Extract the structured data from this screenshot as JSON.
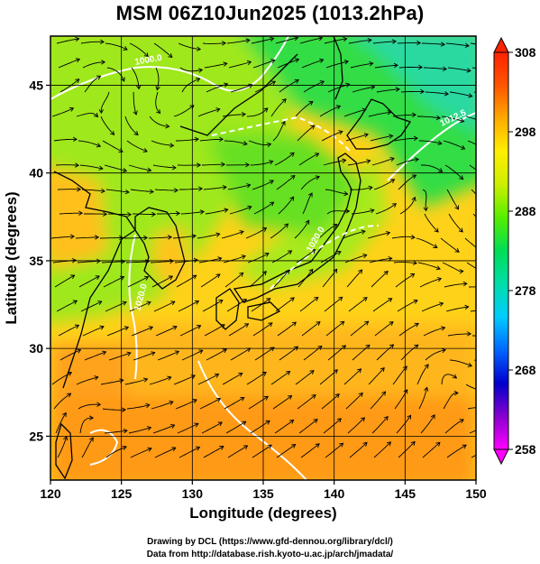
{
  "title": "MSM 06Z10Jun2025 (1013.2hPa)",
  "map": {
    "xlabel": "Longitude (degrees)",
    "ylabel": "Latitude  (degrees)",
    "lon_range": [
      120,
      150
    ],
    "lat_range": [
      22.5,
      47.8
    ],
    "lon_ticks": [
      "120",
      "125",
      "130",
      "135",
      "140",
      "145",
      "150"
    ],
    "lat_ticks": [
      "25",
      "30",
      "35",
      "40",
      "45"
    ],
    "contour_labels": [
      "1000.0",
      "1020.0",
      "1020.0",
      "1012.5"
    ],
    "field_colors": {
      "ocean_south": "#ffa21a",
      "ocean_mid": "#ffd21a",
      "land": "#9fe81a",
      "cool": "#33dd44",
      "north": "#2cd9a0"
    }
  },
  "colorbar": {
    "min": 258,
    "max": 308,
    "labels": [
      "308",
      "298",
      "288",
      "278",
      "268",
      "258"
    ],
    "colors": [
      "#ff00ff",
      "#8800cc",
      "#0000cc",
      "#0066ff",
      "#00ccff",
      "#00ddaa",
      "#00dd55",
      "#55ee00",
      "#ccee00",
      "#ffee00",
      "#ffaa00",
      "#ff5500",
      "#ff2200"
    ]
  },
  "credits": {
    "line1": "Drawing by DCL (https://www.gfd-dennou.org/library/dcl/)",
    "line2": "Data from http://database.rish.kyoto-u.ac.jp/arch/jmadata/"
  }
}
